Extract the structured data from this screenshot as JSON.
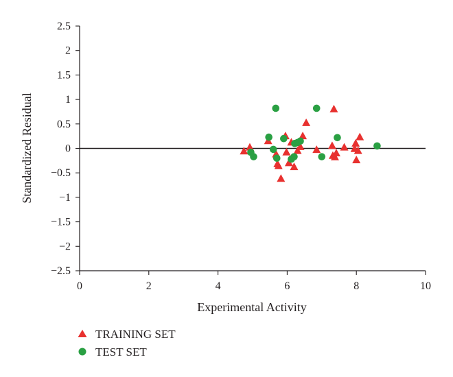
{
  "chart_data": {
    "type": "scatter",
    "xlabel": "Experimental Activity",
    "ylabel": "Standardized Residual",
    "xlim": [
      0,
      10
    ],
    "ylim": [
      -2.5,
      2.5
    ],
    "x_ticks": [
      0,
      2,
      4,
      6,
      8,
      10
    ],
    "y_ticks": [
      2.5,
      2,
      1.5,
      1,
      0.5,
      0,
      -0.5,
      -1,
      -1.5,
      -2,
      -2.5
    ],
    "y_tick_labels": [
      "2.5",
      "2",
      "1.5",
      "1",
      "0.5",
      "0",
      "−0.5",
      "−1",
      "−1.5",
      "−2",
      "−2.5"
    ],
    "grid": false,
    "zero_line": true,
    "legend_position": "bottom-left",
    "series": [
      {
        "name": "TRAINING SET",
        "marker": "triangle",
        "color": "#e8312f",
        "points": [
          {
            "x": 4.75,
            "y": -0.06
          },
          {
            "x": 4.92,
            "y": 0.02
          },
          {
            "x": 5.45,
            "y": 0.15
          },
          {
            "x": 5.68,
            "y": -0.12
          },
          {
            "x": 5.72,
            "y": -0.32
          },
          {
            "x": 5.75,
            "y": -0.36
          },
          {
            "x": 5.82,
            "y": -0.62
          },
          {
            "x": 5.95,
            "y": 0.25
          },
          {
            "x": 5.98,
            "y": -0.08
          },
          {
            "x": 6.05,
            "y": -0.3
          },
          {
            "x": 6.12,
            "y": 0.12
          },
          {
            "x": 6.2,
            "y": -0.38
          },
          {
            "x": 6.3,
            "y": -0.05
          },
          {
            "x": 6.38,
            "y": 0.03
          },
          {
            "x": 6.45,
            "y": 0.25
          },
          {
            "x": 6.55,
            "y": 0.52
          },
          {
            "x": 6.85,
            "y": -0.03
          },
          {
            "x": 7.3,
            "y": 0.05
          },
          {
            "x": 7.32,
            "y": -0.15
          },
          {
            "x": 7.35,
            "y": 0.8
          },
          {
            "x": 7.38,
            "y": -0.18
          },
          {
            "x": 7.42,
            "y": -0.1
          },
          {
            "x": 7.65,
            "y": 0.02
          },
          {
            "x": 7.95,
            "y": -0.01
          },
          {
            "x": 7.98,
            "y": 0.1
          },
          {
            "x": 8.0,
            "y": -0.24
          },
          {
            "x": 8.05,
            "y": -0.05
          },
          {
            "x": 8.1,
            "y": 0.23
          }
        ]
      },
      {
        "name": "TEST SET",
        "marker": "circle",
        "color": "#2aa043",
        "points": [
          {
            "x": 4.95,
            "y": -0.08
          },
          {
            "x": 5.03,
            "y": -0.17
          },
          {
            "x": 5.47,
            "y": 0.23
          },
          {
            "x": 5.6,
            "y": -0.02
          },
          {
            "x": 5.67,
            "y": 0.82
          },
          {
            "x": 5.7,
            "y": -0.2
          },
          {
            "x": 5.9,
            "y": 0.2
          },
          {
            "x": 6.12,
            "y": -0.22
          },
          {
            "x": 6.2,
            "y": -0.17
          },
          {
            "x": 6.22,
            "y": 0.1
          },
          {
            "x": 6.3,
            "y": 0.12
          },
          {
            "x": 6.38,
            "y": 0.15
          },
          {
            "x": 6.85,
            "y": 0.82
          },
          {
            "x": 7.0,
            "y": -0.17
          },
          {
            "x": 7.45,
            "y": 0.22
          },
          {
            "x": 8.6,
            "y": 0.05
          }
        ]
      }
    ]
  }
}
